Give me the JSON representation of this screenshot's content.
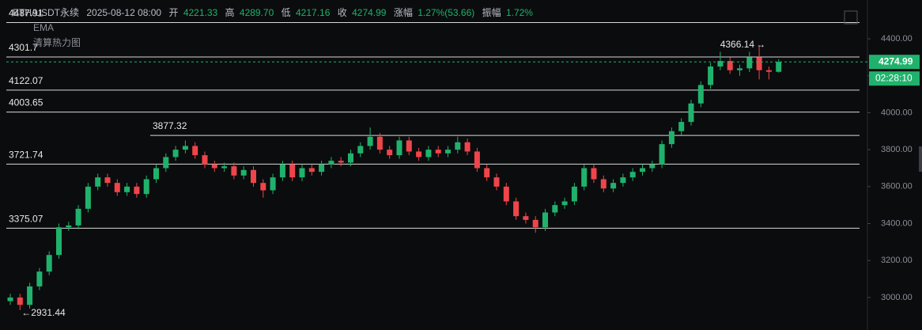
{
  "header": {
    "symbol": "ETH/USDT永续",
    "time": "2025-08-12 08:00",
    "open_label": "开",
    "open": "4221.33",
    "high_label": "高",
    "high": "4289.70",
    "low_label": "低",
    "low": "4217.16",
    "close_label": "收",
    "close": "4274.99",
    "change_label": "涨幅",
    "change": "1.27%(53.66)",
    "amp_label": "振幅",
    "amp": "1.72%",
    "ema": "EMA",
    "heatmap": "清算热力图",
    "countdown": "02:28:10"
  },
  "chart_data": {
    "type": "candlestick",
    "up_color": "#20b26c",
    "down_color": "#ef454a",
    "open": [
      2980,
      3000,
      2960,
      3060,
      3140,
      3230,
      3380,
      3390,
      3480,
      3600,
      3650,
      3620,
      3570,
      3600,
      3560,
      3640,
      3700,
      3760,
      3800,
      3820,
      3770,
      3720,
      3700,
      3710,
      3660,
      3690,
      3620,
      3580,
      3650,
      3720,
      3650,
      3700,
      3680,
      3720,
      3740,
      3730,
      3780,
      3820,
      3870,
      3800,
      3770,
      3850,
      3790,
      3760,
      3800,
      3780,
      3800,
      3840,
      3790,
      3700,
      3650,
      3600,
      3520,
      3440,
      3420,
      3380,
      3460,
      3500,
      3520,
      3600,
      3700,
      3640,
      3590,
      3620,
      3650,
      3680,
      3700,
      3720,
      3830,
      3900,
      3950,
      4050,
      4150,
      4250,
      4280,
      4230,
      4240,
      4300,
      4230,
      4221.33
    ],
    "high": [
      3020,
      3020,
      3080,
      3160,
      3250,
      3400,
      3410,
      3500,
      3620,
      3670,
      3670,
      3640,
      3620,
      3620,
      3660,
      3720,
      3780,
      3820,
      3850,
      3840,
      3790,
      3740,
      3730,
      3730,
      3710,
      3710,
      3640,
      3670,
      3740,
      3740,
      3720,
      3720,
      3740,
      3760,
      3760,
      3800,
      3840,
      3920,
      3890,
      3820,
      3870,
      3870,
      3810,
      3820,
      3820,
      3820,
      3870,
      3860,
      3810,
      3720,
      3670,
      3620,
      3540,
      3460,
      3440,
      3480,
      3520,
      3540,
      3620,
      3720,
      3720,
      3660,
      3640,
      3670,
      3700,
      3720,
      3740,
      3850,
      3920,
      3970,
      4070,
      4170,
      4270,
      4330,
      4300,
      4260,
      4330,
      4366.14,
      4250,
      4289.7
    ],
    "low": [
      2960,
      2931.44,
      2940,
      3040,
      3120,
      3210,
      3360,
      3370,
      3460,
      3580,
      3600,
      3550,
      3550,
      3540,
      3540,
      3620,
      3680,
      3740,
      3780,
      3750,
      3700,
      3680,
      3680,
      3640,
      3640,
      3600,
      3540,
      3560,
      3630,
      3630,
      3630,
      3660,
      3660,
      3700,
      3710,
      3710,
      3760,
      3800,
      3780,
      3750,
      3750,
      3770,
      3740,
      3740,
      3760,
      3760,
      3780,
      3770,
      3680,
      3630,
      3580,
      3500,
      3420,
      3400,
      3350,
      3360,
      3440,
      3480,
      3500,
      3580,
      3620,
      3570,
      3570,
      3600,
      3630,
      3660,
      3680,
      3700,
      3810,
      3880,
      3930,
      4030,
      4130,
      4230,
      4210,
      4200,
      4220,
      4180,
      4180,
      4217.16
    ],
    "close": [
      3000,
      2960,
      3060,
      3140,
      3230,
      3380,
      3390,
      3480,
      3600,
      3650,
      3620,
      3570,
      3600,
      3560,
      3640,
      3700,
      3760,
      3800,
      3820,
      3770,
      3720,
      3700,
      3710,
      3660,
      3690,
      3620,
      3580,
      3650,
      3720,
      3650,
      3700,
      3680,
      3720,
      3740,
      3730,
      3780,
      3820,
      3870,
      3800,
      3770,
      3850,
      3790,
      3760,
      3800,
      3780,
      3800,
      3840,
      3790,
      3700,
      3650,
      3600,
      3520,
      3440,
      3420,
      3380,
      3460,
      3500,
      3520,
      3600,
      3700,
      3640,
      3590,
      3620,
      3650,
      3680,
      3700,
      3720,
      3830,
      3900,
      3950,
      4050,
      4150,
      4250,
      4280,
      4230,
      4240,
      4300,
      4230,
      4221.33,
      4274.99
    ],
    "levels": [
      4487.91,
      4301.7,
      4122.07,
      4003.65,
      3877.32,
      3721.74,
      3375.07
    ],
    "ylim": [
      2824,
      4610
    ],
    "yticks": [
      {
        "value": 3000,
        "label": "3000.00"
      },
      {
        "value": 3200,
        "label": "3200.00"
      },
      {
        "value": 3400,
        "label": "3400.00"
      },
      {
        "value": 3600,
        "label": "3600.00"
      },
      {
        "value": 3800,
        "label": "3800.00"
      },
      {
        "value": 4000,
        "label": "4000.00"
      },
      {
        "value": 4200,
        "label": "4200.00"
      },
      {
        "value": 4400,
        "label": "4400.00"
      }
    ]
  }
}
